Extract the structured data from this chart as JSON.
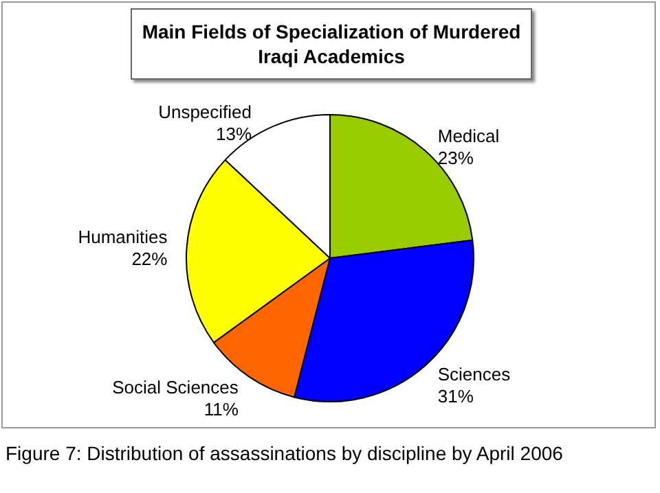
{
  "chart_data": {
    "type": "pie",
    "title": "Main Fields of Specialization of Murdered Iraqi Academics",
    "categories": [
      "Medical",
      "Sciences",
      "Social Sciences",
      "Humanities",
      "Unspecified"
    ],
    "values": [
      23,
      31,
      11,
      22,
      13
    ],
    "value_labels": [
      "23%",
      "31%",
      "11%",
      "22%",
      "13%"
    ],
    "colors": [
      "#99cc00",
      "#0000ff",
      "#ff6600",
      "#ffff00",
      "#ffffff"
    ],
    "annotations": [
      "Figure 7: Distribution of assassinations by discipline by April 2006"
    ]
  }
}
